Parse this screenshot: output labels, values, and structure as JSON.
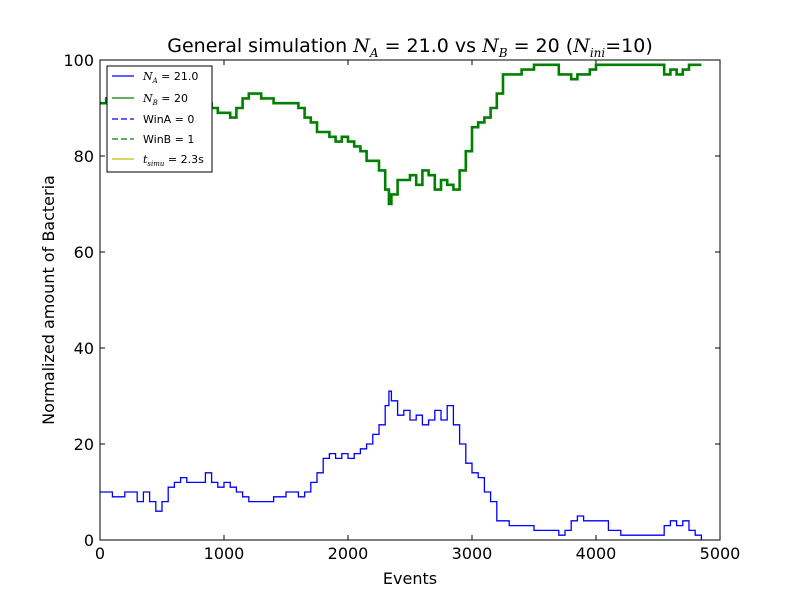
{
  "chart_data": {
    "type": "line",
    "title": "General simulation N_A = 21.0 vs N_B = 20 (N_ini=10)",
    "title_parts": {
      "prefix": "General simulation ",
      "na_symbol": "N",
      "na_sub": "A",
      "na_value": " = 21.0 vs ",
      "nb_symbol": "N",
      "nb_sub": "B",
      "nb_value": " = 20 (",
      "ni_symbol": "N",
      "ni_sub": "ini",
      "ni_value": "=10)"
    },
    "xlabel": "Events",
    "ylabel": "Normalized amount of Bacteria",
    "xlim": [
      0,
      5000
    ],
    "ylim": [
      0,
      100
    ],
    "xticks": [
      0,
      1000,
      2000,
      3000,
      4000,
      5000
    ],
    "yticks": [
      0,
      20,
      40,
      60,
      80,
      100
    ],
    "xtick_labels": [
      "0",
      "1000",
      "2000",
      "3000",
      "4000",
      "5000"
    ],
    "ytick_labels": [
      "0",
      "20",
      "40",
      "60",
      "80",
      "100"
    ],
    "grid": false,
    "legend_position": "top-left",
    "legend": {
      "na": {
        "symbol": "N",
        "sub": "A",
        "value": " = 21.0"
      },
      "nb": {
        "symbol": "N",
        "sub": "B",
        "value": " = 20"
      },
      "wina": "WinA = 0",
      "winb": "WinB = 1",
      "tsimu": {
        "symbol": "t",
        "sub": "simu",
        "value": " = 2.3s"
      }
    },
    "series": [
      {
        "name": "N_A = 21.0",
        "color": "#0000ff",
        "x": [
          0,
          100,
          200,
          300,
          350,
          400,
          450,
          500,
          550,
          600,
          650,
          700,
          800,
          850,
          900,
          950,
          1000,
          1050,
          1100,
          1150,
          1200,
          1300,
          1400,
          1500,
          1600,
          1650,
          1700,
          1750,
          1800,
          1850,
          1900,
          1950,
          2000,
          2050,
          2100,
          2150,
          2200,
          2250,
          2300,
          2330,
          2350,
          2400,
          2450,
          2500,
          2550,
          2600,
          2650,
          2700,
          2750,
          2800,
          2850,
          2900,
          2950,
          3000,
          3050,
          3100,
          3150,
          3200,
          3250,
          3300,
          3400,
          3500,
          3600,
          3700,
          3750,
          3800,
          3850,
          3900,
          3950,
          4000,
          4100,
          4200,
          4300,
          4400,
          4500,
          4550,
          4600,
          4650,
          4700,
          4750,
          4800,
          4850
        ],
        "values": [
          10,
          9,
          10,
          8,
          10,
          8,
          6,
          8,
          11,
          12,
          13,
          12,
          12,
          14,
          12,
          11,
          12,
          11,
          10,
          9,
          8,
          8,
          9,
          10,
          9,
          10,
          12,
          14,
          17,
          18,
          17,
          18,
          17,
          18,
          19,
          20,
          22,
          24,
          28,
          31,
          29,
          26,
          27,
          25,
          26,
          24,
          25,
          27,
          25,
          28,
          24,
          20,
          16,
          14,
          13,
          10,
          8,
          4,
          4,
          3,
          3,
          2,
          2,
          1,
          2,
          4,
          5,
          4,
          4,
          4,
          2,
          1,
          1,
          1,
          1,
          3,
          4,
          3,
          4,
          2,
          1,
          0
        ]
      },
      {
        "name": "N_B = 20",
        "color": "#008000",
        "x": [
          0,
          50,
          100,
          150,
          200,
          300,
          400,
          500,
          600,
          700,
          800,
          850,
          900,
          950,
          1000,
          1050,
          1100,
          1150,
          1200,
          1300,
          1400,
          1500,
          1600,
          1650,
          1700,
          1750,
          1800,
          1850,
          1900,
          1950,
          2000,
          2050,
          2100,
          2150,
          2200,
          2250,
          2300,
          2330,
          2350,
          2400,
          2450,
          2500,
          2550,
          2600,
          2650,
          2700,
          2750,
          2800,
          2850,
          2900,
          2950,
          3000,
          3050,
          3100,
          3150,
          3200,
          3250,
          3300,
          3400,
          3500,
          3600,
          3700,
          3800,
          3850,
          3900,
          3950,
          4000,
          4100,
          4200,
          4300,
          4400,
          4500,
          4550,
          4600,
          4650,
          4700,
          4750,
          4800,
          4850
        ],
        "values": [
          91,
          92,
          91,
          93,
          92,
          91,
          93,
          92,
          90,
          89,
          90,
          91,
          90,
          89,
          89,
          88,
          90,
          92,
          93,
          92,
          91,
          91,
          90,
          88,
          87,
          85,
          85,
          84,
          83,
          84,
          83,
          82,
          81,
          79,
          79,
          77,
          73,
          70,
          72,
          75,
          75,
          76,
          74,
          77,
          76,
          73,
          75,
          74,
          73,
          77,
          81,
          86,
          87,
          88,
          90,
          93,
          97,
          97,
          98,
          99,
          99,
          97,
          96,
          97,
          97,
          98,
          99,
          99,
          99,
          99,
          99,
          99,
          97,
          98,
          97,
          98,
          99,
          99,
          99
        ]
      },
      {
        "name": "WinA = 0",
        "color": "#0000ff",
        "style": "dashed",
        "x": [],
        "values": []
      },
      {
        "name": "WinB = 1",
        "color": "#008000",
        "style": "dashed",
        "x": [],
        "values": []
      },
      {
        "name": "t_simu = 2.3s",
        "color": "#bfbf00",
        "x": [],
        "values": []
      }
    ]
  }
}
